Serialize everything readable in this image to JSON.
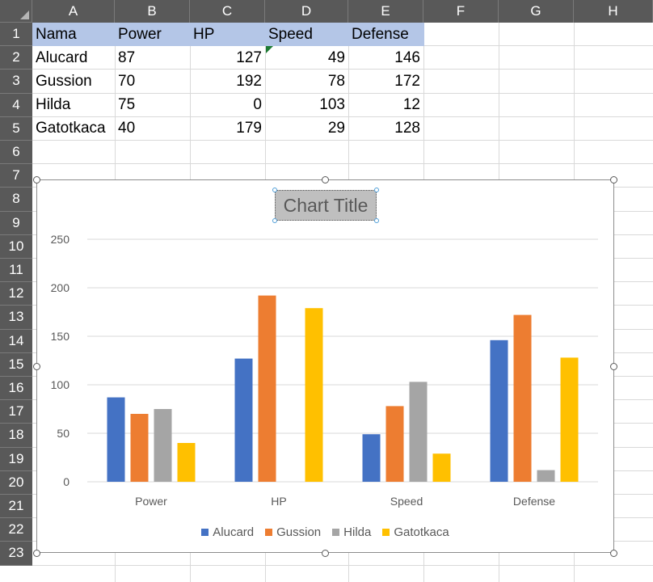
{
  "sheet": {
    "columns": [
      "A",
      "B",
      "C",
      "D",
      "E",
      "F",
      "G",
      "H"
    ],
    "rows": [
      "1",
      "2",
      "3",
      "4",
      "5",
      "6",
      "7",
      "8",
      "9",
      "10",
      "11",
      "12",
      "13",
      "14",
      "15",
      "16",
      "17",
      "18",
      "19",
      "20",
      "21",
      "22",
      "23"
    ],
    "table": {
      "header": [
        "Nama",
        "Power",
        "HP",
        "Speed",
        "Defense"
      ],
      "rows": [
        [
          "Alucard",
          "87",
          "127",
          "49",
          "146"
        ],
        [
          "Gussion",
          "70",
          "192",
          "78",
          "172"
        ],
        [
          "Hilda",
          "75",
          "0",
          "103",
          "12"
        ],
        [
          "Gatotkaca",
          "40",
          "179",
          "29",
          "128"
        ]
      ]
    }
  },
  "chart_data": {
    "type": "bar",
    "title": "Chart Title",
    "categories": [
      "Power",
      "HP",
      "Speed",
      "Defense"
    ],
    "series": [
      {
        "name": "Alucard",
        "values": [
          87,
          127,
          49,
          146
        ],
        "color": "#4472c4"
      },
      {
        "name": "Gussion",
        "values": [
          70,
          192,
          78,
          172
        ],
        "color": "#ed7d31"
      },
      {
        "name": "Hilda",
        "values": [
          75,
          0,
          103,
          12
        ],
        "color": "#a5a5a5"
      },
      {
        "name": "Gatotkaca",
        "values": [
          40,
          179,
          29,
          128
        ],
        "color": "#ffc000"
      }
    ],
    "ylim": [
      0,
      250
    ],
    "yticks": [
      0,
      50,
      100,
      150,
      200,
      250
    ],
    "grid": true,
    "legend": "bottom"
  }
}
